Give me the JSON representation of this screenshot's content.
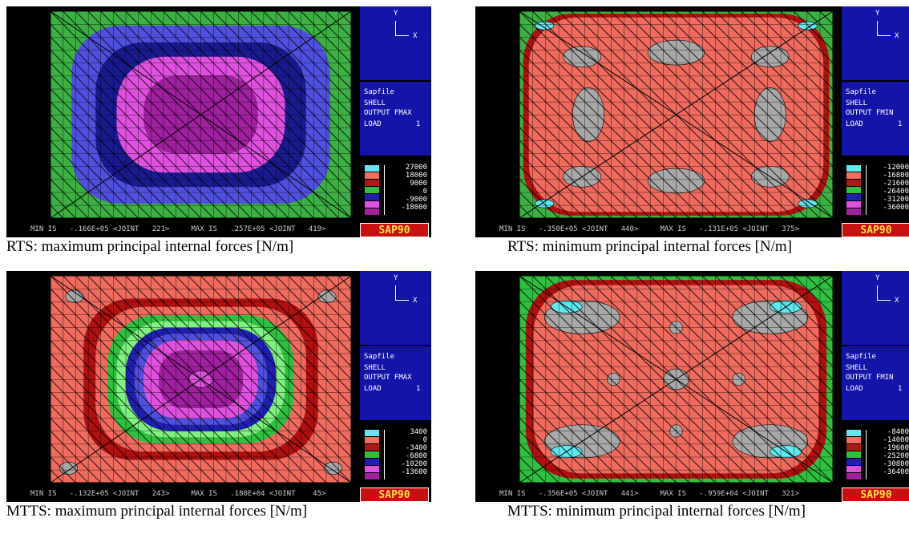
{
  "panels": [
    {
      "axis_y": "Y",
      "axis_x": "X",
      "file": "Sapfile",
      "shell": "SHELL",
      "output": "OUTPUT FMAX",
      "load": "LOAD",
      "load_no": "1",
      "legend": [
        "27000",
        "18000",
        "9000",
        "0",
        "-9000",
        "-18000"
      ],
      "status": "MIN IS   -.166E+05 <JOINT   221>     MAX IS   .257E+05 <JOINT   419>",
      "logo": "SAP90",
      "caption": "RTS: maximum principal internal forces [N/m]"
    },
    {
      "axis_y": "Y",
      "axis_x": "X",
      "file": "Sapfile",
      "shell": "SHELL",
      "output": "OUTPUT FMIN",
      "load": "LOAD",
      "load_no": "1",
      "legend": [
        "-12000",
        "-16800",
        "-21600",
        "-26400",
        "-31200",
        "-36000"
      ],
      "status": "MIN IS   -.350E+05 <JOINT   440>     MAX IS   -.131E+05 <JOINT   375>",
      "logo": "SAP90",
      "caption": "RTS: minimum principal internal forces [N/m]"
    },
    {
      "axis_y": "Y",
      "axis_x": "X",
      "file": "Sapfile",
      "shell": "SHELL",
      "output": "OUTPUT FMAX",
      "load": "LOAD",
      "load_no": "1",
      "legend": [
        "3400",
        "0",
        "-3400",
        "-6800",
        "-10200",
        "-13600"
      ],
      "status": "MIN IS   -.132E+05 <JOINT   243>     MAX IS   .180E+04 <JOINT    45>",
      "logo": "SAP90",
      "caption": "MTTS: maximum principal internal forces [N/m]"
    },
    {
      "axis_y": "Y",
      "axis_x": "X",
      "file": "Sapfile",
      "shell": "SHELL",
      "output": "OUTPUT FMIN",
      "load": "LOAD",
      "load_no": "1",
      "legend": [
        "-8400",
        "-14000",
        "-19600",
        "-25200",
        "-30800",
        "-36400"
      ],
      "status": "MIN IS   -.356E+05 <JOINT   441>     MAX IS   -.959E+04 <JOINT   321>",
      "logo": "SAP90",
      "caption": "MTTS: minimum principal internal forces [N/m]"
    }
  ]
}
